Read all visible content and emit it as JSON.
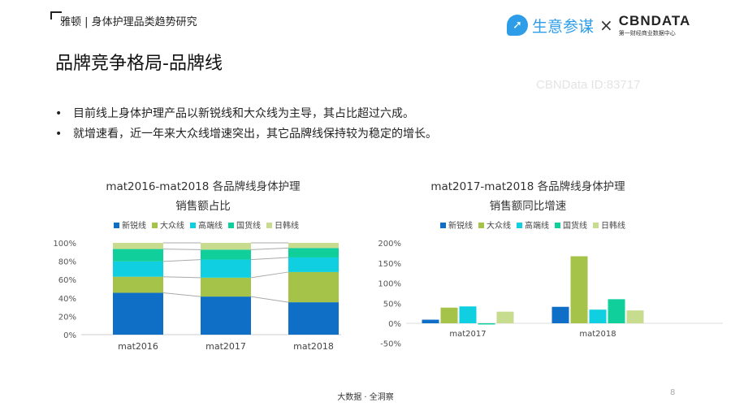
{
  "header": {
    "breadcrumb": "雅顿 | 身体护理品类趋势研究",
    "logo_left": "生意参谋",
    "logo_x": "×",
    "logo_right": "CBNDATA",
    "logo_right_sub": "第一财经商业数据中心"
  },
  "title": "品牌竞争格局-品牌线",
  "bullets": [
    "目前线上身体护理产品以新锐线和大众线为主导，其占比超过六成。",
    "就增速看，近一年来大众线增速突出，其它品牌线保持较为稳定的增长。"
  ],
  "watermark": "CBNData ID:83717",
  "footer": "大数据 · 全洞察",
  "page_number": "8",
  "colors": {
    "新锐线": "#0f6fc6",
    "大众线": "#a5c249",
    "高端线": "#0fcfe0",
    "国货线": "#10cf9b",
    "日韩线": "#c7dc8f"
  },
  "chart_data": [
    {
      "type": "bar",
      "stacked": true,
      "title_lines": [
        "mat2016-mat2018 各品牌线身体护理",
        "销售额占比"
      ],
      "categories": [
        "mat2016",
        "mat2017",
        "mat2018"
      ],
      "series": [
        {
          "name": "新锐线",
          "values": [
            45.6,
            41.5,
            35.3
          ]
        },
        {
          "name": "大众线",
          "values": [
            17.5,
            20.6,
            32.9
          ]
        },
        {
          "name": "高端线",
          "values": [
            16.7,
            19.7,
            15.9
          ]
        },
        {
          "name": "国货线",
          "values": [
            13.5,
            10.8,
            10.3
          ]
        },
        {
          "name": "日韩线",
          "values": [
            6.7,
            7.4,
            5.6
          ]
        }
      ],
      "ylim": [
        0,
        100
      ],
      "yticks": [
        "0%",
        "20%",
        "40%",
        "60%",
        "80%",
        "100%"
      ],
      "legend": "top"
    },
    {
      "type": "bar",
      "title_lines": [
        "mat2017-mat2018 各品牌线身体护理",
        "销售额同比增速"
      ],
      "categories": [
        "mat2017",
        "mat2018"
      ],
      "series": [
        {
          "name": "新锐线",
          "values": [
            9,
            41
          ]
        },
        {
          "name": "大众线",
          "values": [
            39,
            167
          ]
        },
        {
          "name": "高端线",
          "values": [
            42,
            34
          ]
        },
        {
          "name": "国货线",
          "values": [
            -3,
            60
          ]
        },
        {
          "name": "日韩线",
          "values": [
            29,
            32
          ]
        }
      ],
      "ylim": [
        -50,
        200
      ],
      "yticks": [
        "-50%",
        "0%",
        "50%",
        "100%",
        "150%",
        "200%"
      ],
      "legend": "top"
    }
  ]
}
